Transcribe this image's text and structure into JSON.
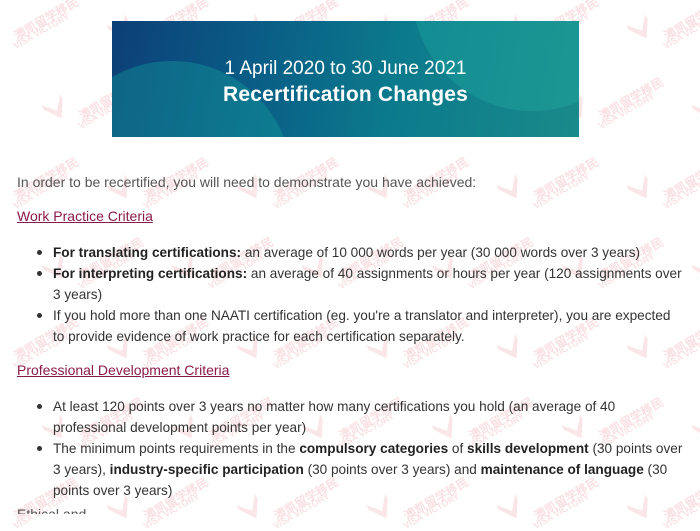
{
  "banner": {
    "date_range": "1 April 2020 to 30 June 2021",
    "title": "Recertification Changes"
  },
  "watermark": {
    "cn": "澳凯留学移民",
    "en": "VISA VICTORY"
  },
  "intro": "In order to be recertified, you will need to demonstrate you have achieved:",
  "work_practice": {
    "heading": "Work Practice Criteria",
    "items": [
      {
        "bold": "For translating certifications:",
        "text": " an average of 10 000 words per year (30 000 words over 3 years)"
      },
      {
        "bold": "For interpreting certifications:",
        "text": " an average of 40 assignments or hours per year (120 assignments over 3 years)"
      },
      {
        "bold": "",
        "text": "If you hold more than one NAATI certification (eg. you're a translator and interpreter), you are expected to provide evidence of work practice for each certification separately."
      }
    ]
  },
  "professional_development": {
    "heading": "Professional Development Criteria",
    "item1": "At least 120 points over 3 years no matter how many certifications you hold (an average of 40 professional development points per year)",
    "item2": {
      "t1": "The minimum points requirements in the ",
      "b1": "compulsory categories",
      "t2": " of ",
      "b2": "skills development",
      "t3": " (30 points over 3 years), ",
      "b3": "industry-specific participation",
      "t4": " (30 points over 3 years) and ",
      "b4": "maintenance of language",
      "t5": " (30 points over 3 years)"
    }
  },
  "cutoff_text": "Ethical and"
}
